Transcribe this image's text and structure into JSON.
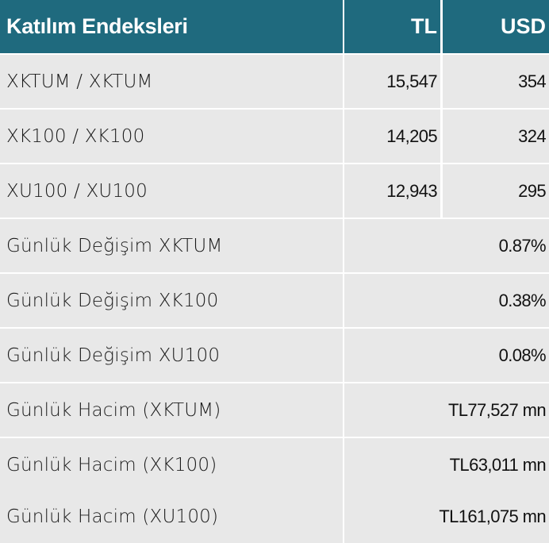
{
  "header": {
    "title": "Katılım Endeksleri",
    "col_tl": "TL",
    "col_usd": "USD"
  },
  "index_rows": [
    {
      "label": "XKTUM / XKTUM",
      "tl": "15,547",
      "usd": "354"
    },
    {
      "label": "XK100 / XK100",
      "tl": "14,205",
      "usd": "324"
    },
    {
      "label": "XU100 / XU100",
      "tl": "12,943",
      "usd": "295"
    }
  ],
  "summary_rows": [
    {
      "label": "Günlük Değişim XKTUM",
      "value": "0.87%"
    },
    {
      "label": "Günlük Değişim XK100",
      "value": "0.38%"
    },
    {
      "label": "Günlük Değişim XU100",
      "value": "0.08%"
    },
    {
      "label": "Günlük Hacim (XKTUM)",
      "value": "TL77,527 mn"
    },
    {
      "label": "Günlük Hacim (XK100)",
      "value": "TL63,011 mn"
    },
    {
      "label": "Günlük Hacim (XU100)",
      "value": "TL161,075 mn"
    }
  ],
  "colors": {
    "header_bg": "#1f6a7e",
    "header_text": "#ffffff",
    "row_bg": "#e8e8e8",
    "border": "#ffffff"
  }
}
